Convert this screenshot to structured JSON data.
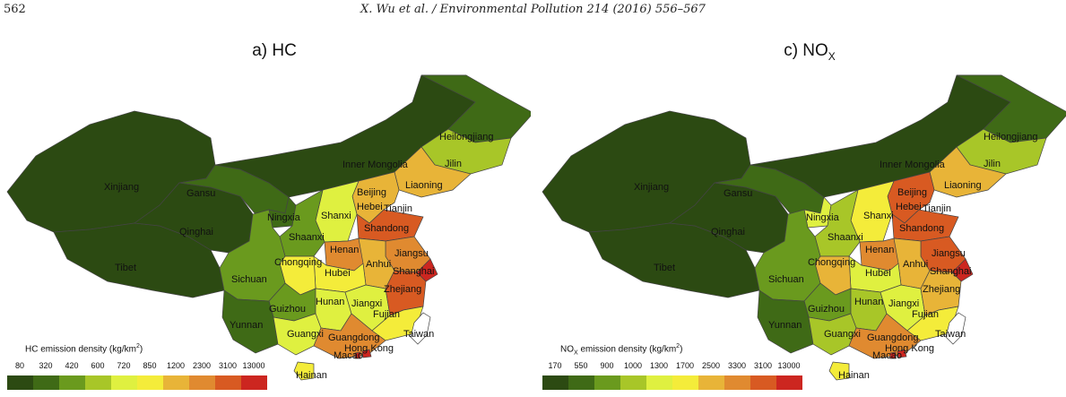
{
  "header": {
    "page_number": "562",
    "citation": "X. Wu et al. / Environmental Pollution 214 (2016) 556–567"
  },
  "colors": {
    "scale": [
      "#2c4a12",
      "#3f6a16",
      "#6a9a1e",
      "#a8c628",
      "#dff040",
      "#f4ec3a",
      "#e8b438",
      "#e08a30",
      "#d85a22",
      "#cc2620"
    ],
    "outline": "#444444",
    "taiwan": "#ffffff"
  },
  "panels": [
    {
      "id": "hc",
      "title_main": "a) HC",
      "title_sub": "",
      "legend_prefix": "HC",
      "legend_title": " emission density (kg/km",
      "legend_unit_sup": "2",
      "legend_close": ")",
      "legend_ticks": [
        "80",
        "320",
        "420",
        "600",
        "720",
        "850",
        "1200",
        "2300",
        "3100",
        "13000"
      ],
      "provinces": {
        "Xinjiang": 0,
        "Tibet": 0,
        "Qinghai": 0,
        "Gansu": 1,
        "Inner Mongolia": 0,
        "Heilongjiang": 1,
        "Jilin": 3,
        "Liaoning": 6,
        "Beijing": 8,
        "Tianjin": 9,
        "Hebei": 6,
        "Shanxi": 4,
        "Ningxia": 1,
        "Shaanxi": 2,
        "Shandong": 8,
        "Henan": 7,
        "Jiangsu": 7,
        "Anhui": 6,
        "Shanghai": 9,
        "Hubei": 5,
        "Chongqing": 5,
        "Sichuan": 2,
        "Guizhou": 2,
        "Yunnan": 1,
        "Hunan": 4,
        "Jiangxi": 4,
        "Zhejiang": 8,
        "Fujian": 5,
        "Guangxi": 4,
        "Guangdong": 7,
        "Hainan": 5,
        "Hong Kong": 9,
        "Macao": 9,
        "Taiwan": -1
      }
    },
    {
      "id": "nox",
      "title_main": "c) NO",
      "title_sub": "X",
      "legend_prefix": "NO",
      "legend_prefix_sub": "X",
      "legend_title": " emission density (kg/km",
      "legend_unit_sup": "2",
      "legend_close": ")",
      "legend_ticks": [
        "170",
        "550",
        "900",
        "1000",
        "1300",
        "1700",
        "2500",
        "3300",
        "3100",
        "13000"
      ],
      "provinces": {
        "Xinjiang": 0,
        "Tibet": 0,
        "Qinghai": 0,
        "Gansu": 1,
        "Inner Mongolia": 0,
        "Heilongjiang": 1,
        "Jilin": 3,
        "Liaoning": 6,
        "Beijing": 8,
        "Tianjin": 9,
        "Hebei": 8,
        "Shanxi": 5,
        "Ningxia": 4,
        "Shaanxi": 3,
        "Shandong": 8,
        "Henan": 7,
        "Jiangsu": 8,
        "Anhui": 6,
        "Shanghai": 9,
        "Hubei": 4,
        "Chongqing": 6,
        "Sichuan": 2,
        "Guizhou": 2,
        "Yunnan": 1,
        "Hunan": 3,
        "Jiangxi": 4,
        "Zhejiang": 6,
        "Fujian": 5,
        "Guangxi": 3,
        "Guangdong": 7,
        "Hainan": 5,
        "Hong Kong": 9,
        "Macao": 9,
        "Taiwan": -1
      }
    }
  ]
}
